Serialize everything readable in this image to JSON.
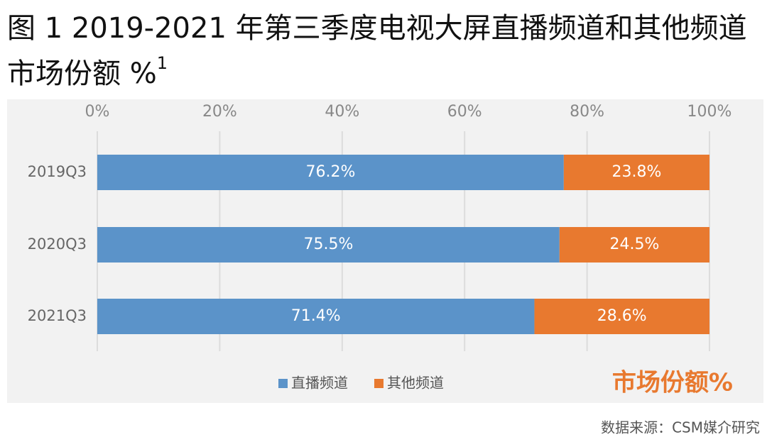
{
  "chart_data": {
    "type": "stacked-bar-horizontal",
    "title": "图 1 2019-2021 年第三季度电视大屏直播频道和其他频道市场份额 %",
    "title_note": "1",
    "categories": [
      "2019Q3",
      "2020Q3",
      "2021Q3"
    ],
    "series": [
      {
        "name": "直播频道",
        "color": "#5b93c9",
        "values": [
          76.2,
          75.5,
          71.4
        ],
        "value_labels": [
          "76.2%",
          "75.5%",
          "71.4%"
        ]
      },
      {
        "name": "其他频道",
        "color": "#e8792f",
        "values": [
          23.8,
          24.5,
          28.6
        ],
        "value_labels": [
          "23.8%",
          "24.5%",
          "28.6%"
        ]
      }
    ],
    "xlim": [
      0,
      100
    ],
    "xticks": [
      {
        "value": 0,
        "label": "0%"
      },
      {
        "value": 20,
        "label": "20%"
      },
      {
        "value": 40,
        "label": "40%"
      },
      {
        "value": 60,
        "label": "60%"
      },
      {
        "value": 80,
        "label": "80%"
      },
      {
        "value": 100,
        "label": "100%"
      }
    ],
    "grid": true,
    "annotation": "市场份额%",
    "source": "数据来源：CSM媒介研究"
  }
}
